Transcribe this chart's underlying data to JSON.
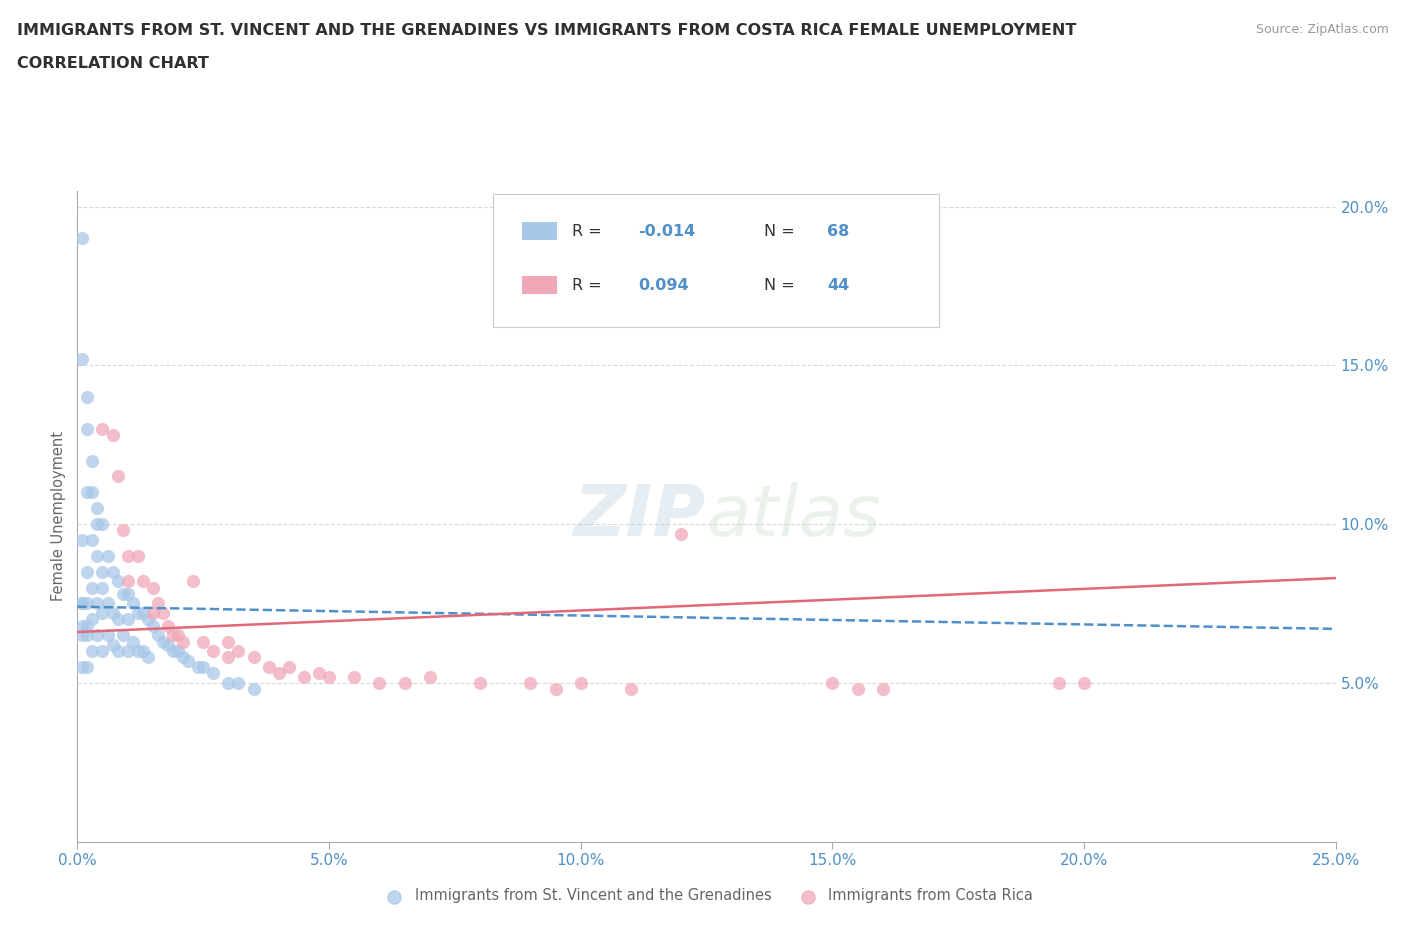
{
  "title_line1": "IMMIGRANTS FROM ST. VINCENT AND THE GRENADINES VS IMMIGRANTS FROM COSTA RICA FEMALE UNEMPLOYMENT",
  "title_line2": "CORRELATION CHART",
  "source_text": "Source: ZipAtlas.com",
  "ylabel": "Female Unemployment",
  "watermark_zip": "ZIP",
  "watermark_atlas": "atlas",
  "xmin": 0.0,
  "xmax": 0.25,
  "ymin": 0.0,
  "ymax": 0.205,
  "x_ticks": [
    0.0,
    0.05,
    0.1,
    0.15,
    0.2,
    0.25
  ],
  "x_tick_labels": [
    "0.0%",
    "5.0%",
    "10.0%",
    "15.0%",
    "20.0%",
    "25.0%"
  ],
  "y_tick_positions": [
    0.05,
    0.1,
    0.15,
    0.2
  ],
  "y_tick_labels": [
    "5.0%",
    "10.0%",
    "15.0%",
    "20.0%"
  ],
  "blue_scatter_x": [
    0.001,
    0.001,
    0.001,
    0.001,
    0.001,
    0.002,
    0.002,
    0.002,
    0.002,
    0.002,
    0.002,
    0.003,
    0.003,
    0.003,
    0.003,
    0.003,
    0.004,
    0.004,
    0.004,
    0.004,
    0.005,
    0.005,
    0.005,
    0.005,
    0.006,
    0.006,
    0.006,
    0.007,
    0.007,
    0.007,
    0.008,
    0.008,
    0.008,
    0.009,
    0.009,
    0.01,
    0.01,
    0.01,
    0.011,
    0.011,
    0.012,
    0.012,
    0.013,
    0.013,
    0.014,
    0.014,
    0.015,
    0.016,
    0.017,
    0.018,
    0.019,
    0.02,
    0.021,
    0.022,
    0.024,
    0.025,
    0.027,
    0.03,
    0.032,
    0.035,
    0.001,
    0.001,
    0.001,
    0.002,
    0.002,
    0.003,
    0.004,
    0.005
  ],
  "blue_scatter_y": [
    0.19,
    0.095,
    0.075,
    0.065,
    0.055,
    0.14,
    0.11,
    0.085,
    0.075,
    0.065,
    0.055,
    0.12,
    0.095,
    0.08,
    0.07,
    0.06,
    0.105,
    0.09,
    0.075,
    0.065,
    0.1,
    0.085,
    0.072,
    0.06,
    0.09,
    0.075,
    0.065,
    0.085,
    0.072,
    0.062,
    0.082,
    0.07,
    0.06,
    0.078,
    0.065,
    0.078,
    0.07,
    0.06,
    0.075,
    0.063,
    0.072,
    0.06,
    0.072,
    0.06,
    0.07,
    0.058,
    0.068,
    0.065,
    0.063,
    0.062,
    0.06,
    0.06,
    0.058,
    0.057,
    0.055,
    0.055,
    0.053,
    0.05,
    0.05,
    0.048,
    0.152,
    0.075,
    0.068,
    0.13,
    0.068,
    0.11,
    0.1,
    0.08
  ],
  "pink_scatter_x": [
    0.005,
    0.007,
    0.008,
    0.009,
    0.01,
    0.01,
    0.012,
    0.013,
    0.015,
    0.015,
    0.016,
    0.017,
    0.018,
    0.019,
    0.02,
    0.021,
    0.023,
    0.025,
    0.027,
    0.03,
    0.03,
    0.032,
    0.035,
    0.038,
    0.04,
    0.042,
    0.045,
    0.048,
    0.05,
    0.055,
    0.06,
    0.065,
    0.07,
    0.08,
    0.09,
    0.095,
    0.1,
    0.11,
    0.12,
    0.15,
    0.155,
    0.16,
    0.195,
    0.2
  ],
  "pink_scatter_y": [
    0.13,
    0.128,
    0.115,
    0.098,
    0.09,
    0.082,
    0.09,
    0.082,
    0.08,
    0.072,
    0.075,
    0.072,
    0.068,
    0.065,
    0.065,
    0.063,
    0.082,
    0.063,
    0.06,
    0.063,
    0.058,
    0.06,
    0.058,
    0.055,
    0.053,
    0.055,
    0.052,
    0.053,
    0.052,
    0.052,
    0.05,
    0.05,
    0.052,
    0.05,
    0.05,
    0.048,
    0.05,
    0.048,
    0.097,
    0.05,
    0.048,
    0.048,
    0.05,
    0.05
  ],
  "blue_line_x": [
    0.0,
    0.25
  ],
  "blue_line_y": [
    0.074,
    0.067
  ],
  "pink_line_x": [
    0.0,
    0.25
  ],
  "pink_line_y": [
    0.066,
    0.083
  ],
  "background_color": "#ffffff",
  "grid_color": "#d0d0d0",
  "blue_color": "#a8c8e8",
  "pink_color": "#f0a8b8",
  "blue_line_color": "#5090c8",
  "pink_line_color": "#e06878",
  "title_color": "#303030",
  "axis_label_color": "#666666",
  "tick_color": "#5090c8",
  "source_color": "#999999",
  "legend_R1": "-0.014",
  "legend_N1": "68",
  "legend_R2": "0.094",
  "legend_N2": "44",
  "legend_label1": "Immigrants from St. Vincent and the Grenadines",
  "legend_label2": "Immigrants from Costa Rica"
}
